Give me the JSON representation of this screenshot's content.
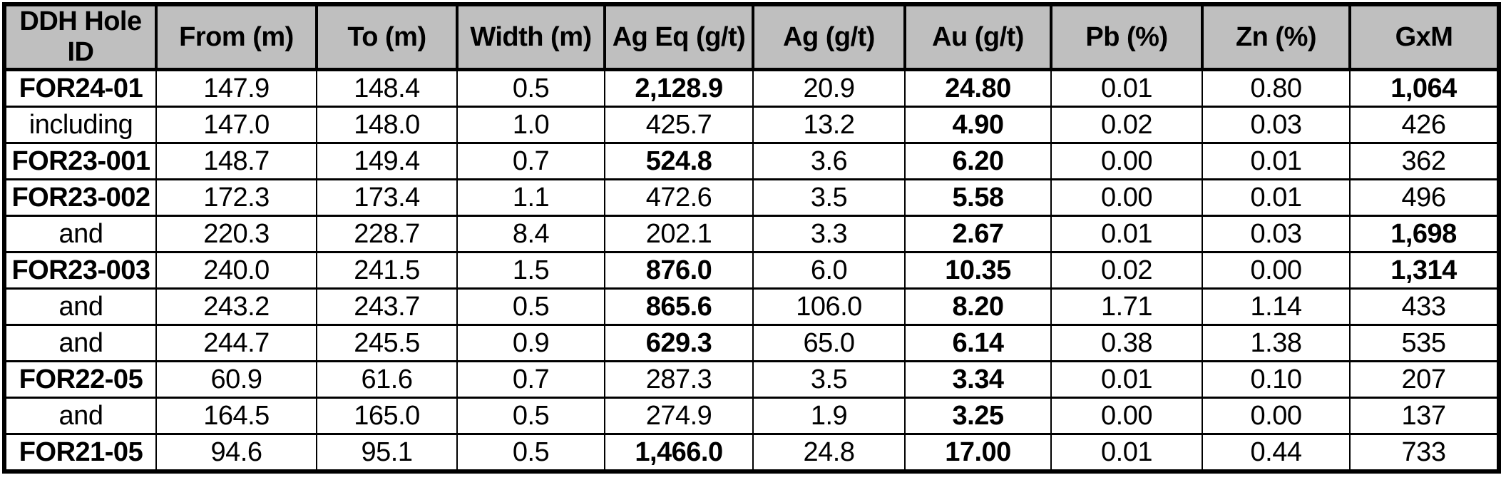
{
  "style": {
    "header_bg": "#BFBFBF",
    "border_color": "#000000",
    "text_color": "#000000",
    "page_bg": "#FFFFFF"
  },
  "chart_data": {
    "type": "table",
    "columns": [
      "DDH Hole ID",
      "From (m)",
      "To (m)",
      "Width (m)",
      "Ag Eq (g/t)",
      "Ag (g/t)",
      "Au (g/t)",
      "Pb (%)",
      "Zn (%)",
      "GxM"
    ],
    "rows": [
      {
        "cells": [
          "FOR24-01",
          "147.9",
          "148.4",
          "0.5",
          "2,128.9",
          "20.9",
          "24.80",
          "0.01",
          "0.80",
          "1,064"
        ],
        "bold": [
          true,
          false,
          false,
          false,
          true,
          false,
          true,
          false,
          false,
          true
        ]
      },
      {
        "cells": [
          "including",
          "147.0",
          "148.0",
          "1.0",
          "425.7",
          "13.2",
          "4.90",
          "0.02",
          "0.03",
          "426"
        ],
        "bold": [
          false,
          false,
          false,
          false,
          false,
          false,
          true,
          false,
          false,
          false
        ]
      },
      {
        "cells": [
          "FOR23-001",
          "148.7",
          "149.4",
          "0.7",
          "524.8",
          "3.6",
          "6.20",
          "0.00",
          "0.01",
          "362"
        ],
        "bold": [
          true,
          false,
          false,
          false,
          true,
          false,
          true,
          false,
          false,
          false
        ]
      },
      {
        "cells": [
          "FOR23-002",
          "172.3",
          "173.4",
          "1.1",
          "472.6",
          "3.5",
          "5.58",
          "0.00",
          "0.01",
          "496"
        ],
        "bold": [
          true,
          false,
          false,
          false,
          false,
          false,
          true,
          false,
          false,
          false
        ]
      },
      {
        "cells": [
          "and",
          "220.3",
          "228.7",
          "8.4",
          "202.1",
          "3.3",
          "2.67",
          "0.01",
          "0.03",
          "1,698"
        ],
        "bold": [
          false,
          false,
          false,
          false,
          false,
          false,
          true,
          false,
          false,
          true
        ]
      },
      {
        "cells": [
          "FOR23-003",
          "240.0",
          "241.5",
          "1.5",
          "876.0",
          "6.0",
          "10.35",
          "0.02",
          "0.00",
          "1,314"
        ],
        "bold": [
          true,
          false,
          false,
          false,
          true,
          false,
          true,
          false,
          false,
          true
        ]
      },
      {
        "cells": [
          "and",
          "243.2",
          "243.7",
          "0.5",
          "865.6",
          "106.0",
          "8.20",
          "1.71",
          "1.14",
          "433"
        ],
        "bold": [
          false,
          false,
          false,
          false,
          true,
          false,
          true,
          false,
          false,
          false
        ]
      },
      {
        "cells": [
          "and",
          "244.7",
          "245.5",
          "0.9",
          "629.3",
          "65.0",
          "6.14",
          "0.38",
          "1.38",
          "535"
        ],
        "bold": [
          false,
          false,
          false,
          false,
          true,
          false,
          true,
          false,
          false,
          false
        ]
      },
      {
        "cells": [
          "FOR22-05",
          "60.9",
          "61.6",
          "0.7",
          "287.3",
          "3.5",
          "3.34",
          "0.01",
          "0.10",
          "207"
        ],
        "bold": [
          true,
          false,
          false,
          false,
          false,
          false,
          true,
          false,
          false,
          false
        ]
      },
      {
        "cells": [
          "and",
          "164.5",
          "165.0",
          "0.5",
          "274.9",
          "1.9",
          "3.25",
          "0.00",
          "0.00",
          "137"
        ],
        "bold": [
          false,
          false,
          false,
          false,
          false,
          false,
          true,
          false,
          false,
          false
        ]
      },
      {
        "cells": [
          "FOR21-05",
          "94.6",
          "95.1",
          "0.5",
          "1,466.0",
          "24.8",
          "17.00",
          "0.01",
          "0.44",
          "733"
        ],
        "bold": [
          true,
          false,
          false,
          false,
          true,
          false,
          true,
          false,
          false,
          false
        ]
      }
    ]
  }
}
